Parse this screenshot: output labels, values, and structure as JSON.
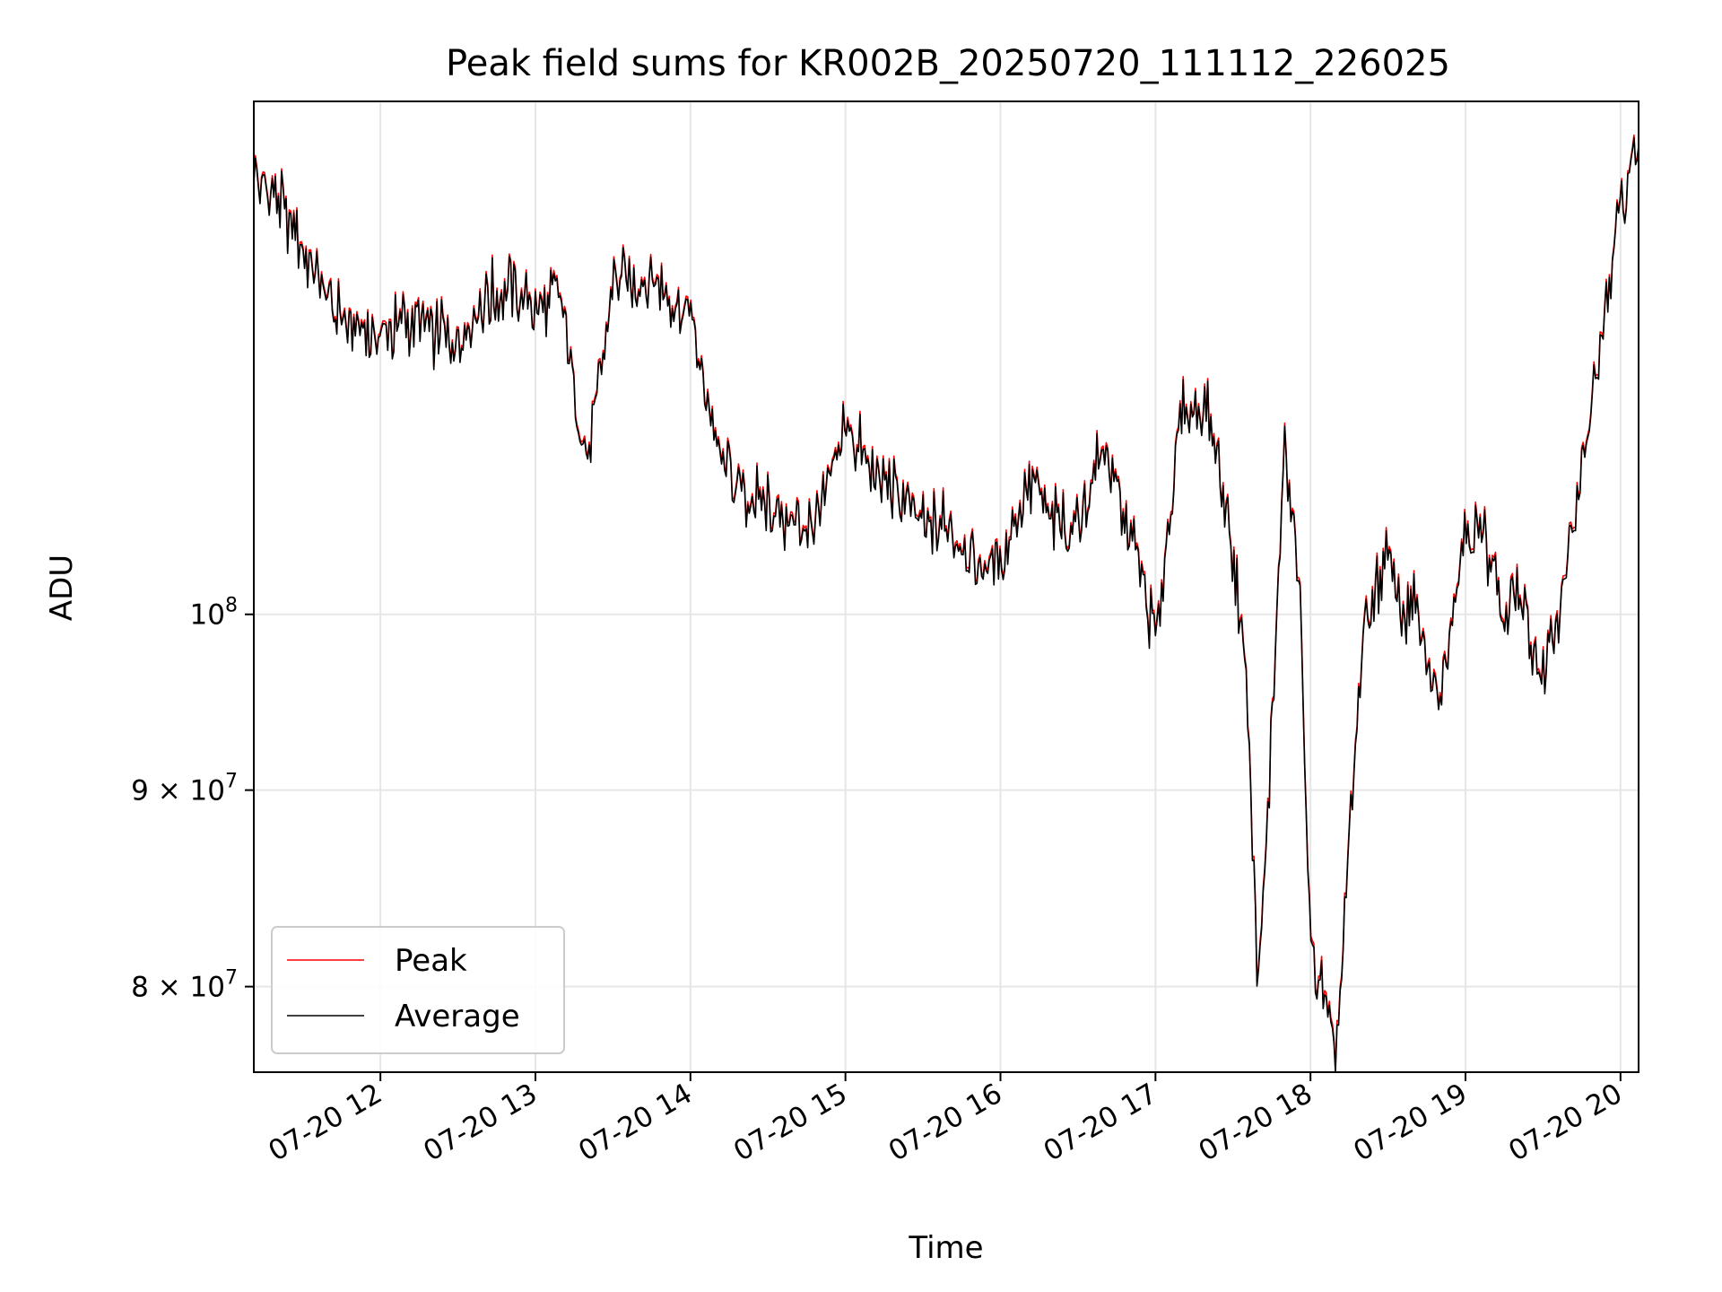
{
  "chart_data": {
    "type": "line",
    "title": "Peak field sums for KR002B_20250720_111112_226025",
    "xlabel": "Time",
    "ylabel": "ADU",
    "y_scale": "log",
    "xlim": [
      "07-20 11:11",
      "07-20 20:07"
    ],
    "ylim": [
      76000000,
      136000000
    ],
    "grid": true,
    "legend_position": "lower-left",
    "x_ticks": [
      "07-20 12",
      "07-20 13",
      "07-20 14",
      "07-20 15",
      "07-20 16",
      "07-20 17",
      "07-20 18",
      "07-20 19",
      "07-20 20"
    ],
    "y_ticks": [
      {
        "value": 100000000,
        "base": "10",
        "exp": "8",
        "mant": ""
      },
      {
        "value": 90000000,
        "base": "10",
        "exp": "7",
        "mant": "9 × "
      },
      {
        "value": 80000000,
        "base": "10",
        "exp": "7",
        "mant": "8 × "
      }
    ],
    "colors": {
      "Peak": "#ff0000",
      "Average": "#000000"
    },
    "x": [
      "11:11",
      "11:20",
      "11:30",
      "11:40",
      "11:50",
      "12:00",
      "12:10",
      "12:20",
      "12:30",
      "12:40",
      "12:50",
      "13:00",
      "13:10",
      "13:20",
      "13:30",
      "13:40",
      "13:50",
      "14:00",
      "14:10",
      "14:20",
      "14:30",
      "14:40",
      "14:50",
      "15:00",
      "15:10",
      "15:20",
      "15:30",
      "15:40",
      "15:50",
      "16:00",
      "16:10",
      "16:20",
      "16:30",
      "16:40",
      "16:50",
      "16:53",
      "17:00",
      "17:10",
      "17:20",
      "17:28",
      "17:35",
      "17:40",
      "17:50",
      "17:56",
      "18:00",
      "18:10",
      "18:20",
      "18:30",
      "18:35",
      "18:40",
      "18:50",
      "19:00",
      "19:10",
      "19:15",
      "19:20",
      "19:30",
      "19:40",
      "19:50",
      "20:00",
      "20:07"
    ],
    "series": [
      {
        "name": "Peak",
        "values": [
          130000000,
          128500000,
          124500000,
          121000000,
          119000000,
          118000000,
          119500000,
          118500000,
          118000000,
          121000000,
          122000000,
          120500000,
          121000000,
          109500000,
          122000000,
          122500000,
          121500000,
          120000000,
          110500000,
          107500000,
          107000000,
          105500000,
          106000000,
          112500000,
          109000000,
          107500000,
          105500000,
          106000000,
          103000000,
          103500000,
          108500000,
          106000000,
          105500000,
          111000000,
          105000000,
          103500000,
          98500000,
          113000000,
          113500000,
          106500000,
          96800000,
          79500000,
          110500000,
          101000000,
          82000000,
          77000000,
          98500000,
          104000000,
          100000000,
          100500000,
          95000000,
          106000000,
          104000000,
          100000000,
          101500000,
          96000000,
          104000000,
          114500000,
          128000000,
          132000000
        ]
      },
      {
        "name": "Average",
        "values": [
          129800000,
          128300000,
          124300000,
          120800000,
          118800000,
          117800000,
          119300000,
          118300000,
          117800000,
          120800000,
          121800000,
          120300000,
          120800000,
          109300000,
          121800000,
          122300000,
          121300000,
          119800000,
          110300000,
          107300000,
          106800000,
          105300000,
          105800000,
          112300000,
          108800000,
          107300000,
          105300000,
          105800000,
          102800000,
          103300000,
          108300000,
          105800000,
          105300000,
          110800000,
          104800000,
          103300000,
          98300000,
          112800000,
          113300000,
          106300000,
          96600000,
          79300000,
          110300000,
          100800000,
          81800000,
          76800000,
          98300000,
          103800000,
          99800000,
          100300000,
          94800000,
          105800000,
          103800000,
          99800000,
          101300000,
          95800000,
          103800000,
          114300000,
          127800000,
          131800000
        ]
      }
    ]
  }
}
